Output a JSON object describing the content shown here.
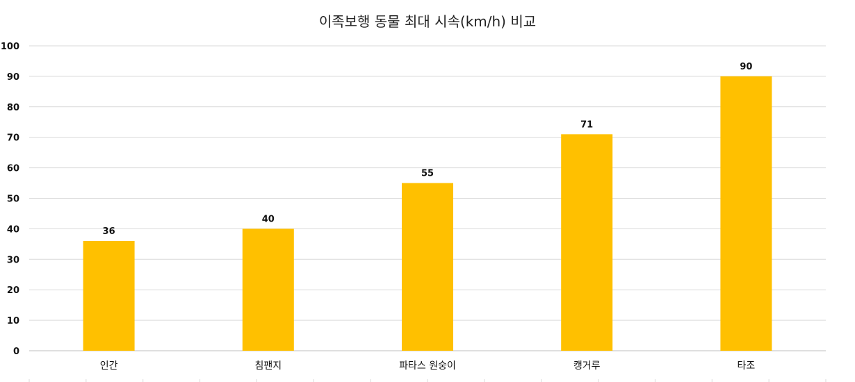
{
  "chart_data": {
    "type": "bar",
    "title": "이족보행 동물 최대 시속(km/h) 비교",
    "categories": [
      "인간",
      "침팬지",
      "파타스 원숭이",
      "캥거루",
      "타조"
    ],
    "values": [
      36,
      40,
      55,
      71,
      90
    ],
    "xlabel": "",
    "ylabel": "",
    "ylim": [
      0,
      100
    ],
    "yticks": [
      0,
      10,
      20,
      30,
      40,
      50,
      60,
      70,
      80,
      90,
      100
    ],
    "grid": true,
    "legend": "none",
    "data_labels": true,
    "bar_color": "#FFC000"
  }
}
